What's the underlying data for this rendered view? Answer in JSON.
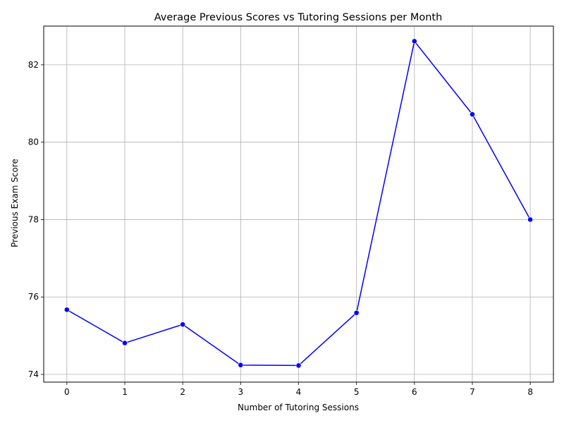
{
  "chart_data": {
    "type": "line",
    "title": "Average Previous Scores vs Tutoring Sessions per Month",
    "xlabel": "Number of Tutoring Sessions",
    "ylabel": "Previous Exam Score",
    "x": [
      0,
      1,
      2,
      3,
      4,
      5,
      6,
      7,
      8
    ],
    "series": [
      {
        "values": [
          75.67,
          74.81,
          75.29,
          74.24,
          74.23,
          75.59,
          82.61,
          80.72,
          78.0
        ],
        "color": "#0000ff",
        "marker": "circle"
      }
    ],
    "xticks": [
      0,
      1,
      2,
      3,
      4,
      5,
      6,
      7,
      8
    ],
    "yticks": [
      74,
      76,
      78,
      80,
      82
    ],
    "xlim": [
      -0.4,
      8.4
    ],
    "ylim": [
      73.8,
      83.0
    ],
    "grid": true,
    "grid_color": "#b0b0b0",
    "axis_color": "#000000"
  }
}
